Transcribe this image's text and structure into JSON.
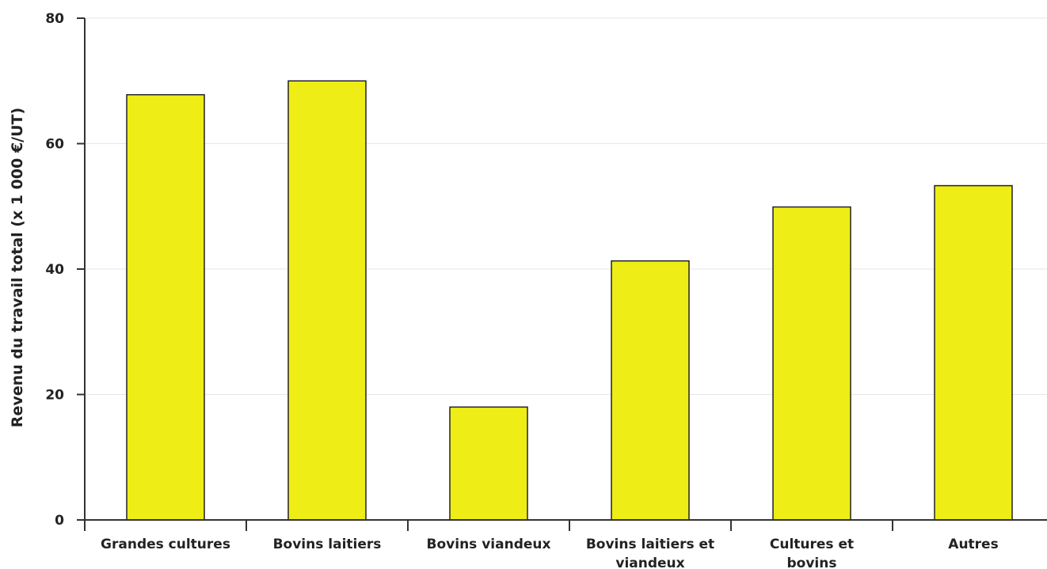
{
  "chart_data": {
    "type": "bar",
    "title": "",
    "xlabel": "",
    "ylabel": "Revenu du travail total (x 1 000 €/UT)",
    "categories": [
      [
        "Grandes cultures"
      ],
      [
        "Bovins laitiers"
      ],
      [
        "Bovins viandeux"
      ],
      [
        "Bovins laitiers et",
        "viandeux"
      ],
      [
        "Cultures et",
        "bovins"
      ],
      [
        "Autres"
      ]
    ],
    "values": [
      67.8,
      70.0,
      18.0,
      41.3,
      49.9,
      53.3
    ],
    "ylim": [
      0,
      80
    ],
    "yticks": [
      "0",
      "20",
      "40",
      "60",
      "80"
    ],
    "grid": true,
    "legend": "none",
    "colors": {
      "bar_fill": "#eeed16",
      "bar_stroke": "#222222",
      "grid": "#e6e6e6",
      "axis": "#333333",
      "text": "#222222"
    }
  }
}
